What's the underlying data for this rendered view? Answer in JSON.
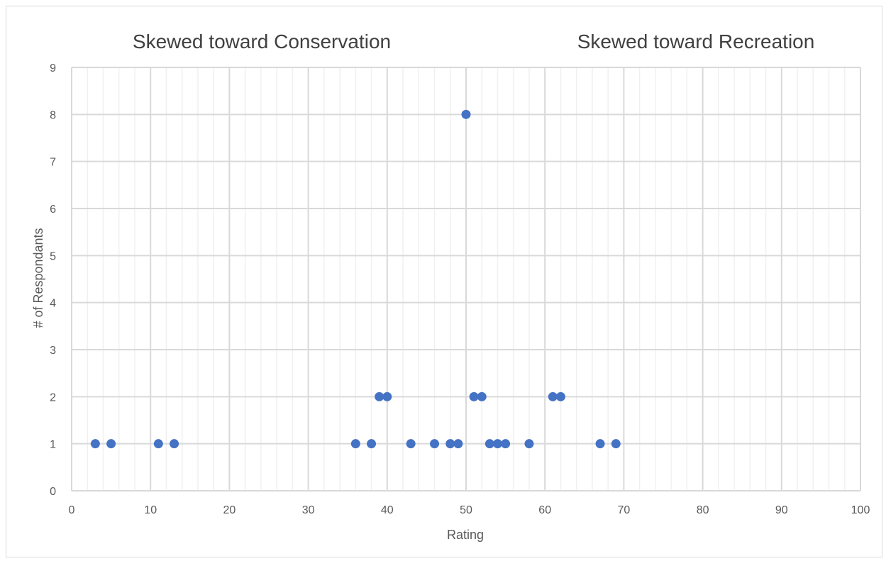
{
  "chart_data": {
    "type": "scatter",
    "title": "",
    "xlabel": "Rating",
    "ylabel": "# of Respondants",
    "xlim": [
      0,
      100
    ],
    "ylim": [
      0,
      9
    ],
    "x_ticks": [
      0,
      10,
      20,
      30,
      40,
      50,
      60,
      70,
      80,
      90,
      100
    ],
    "y_ticks": [
      0,
      1,
      2,
      3,
      4,
      5,
      6,
      7,
      8,
      9
    ],
    "grid": true,
    "legend": "none",
    "annotations": [
      {
        "text": "Skewed toward Conservation"
      },
      {
        "text": "Skewed toward Recreation"
      }
    ],
    "series": [
      {
        "color": "#4472c4",
        "points": [
          {
            "x": 3,
            "y": 1
          },
          {
            "x": 5,
            "y": 1
          },
          {
            "x": 11,
            "y": 1
          },
          {
            "x": 13,
            "y": 1
          },
          {
            "x": 36,
            "y": 1
          },
          {
            "x": 38,
            "y": 1
          },
          {
            "x": 39,
            "y": 2
          },
          {
            "x": 40,
            "y": 2
          },
          {
            "x": 43,
            "y": 1
          },
          {
            "x": 46,
            "y": 1
          },
          {
            "x": 48,
            "y": 1
          },
          {
            "x": 49,
            "y": 1
          },
          {
            "x": 50,
            "y": 8
          },
          {
            "x": 51,
            "y": 2
          },
          {
            "x": 52,
            "y": 2
          },
          {
            "x": 53,
            "y": 1
          },
          {
            "x": 54,
            "y": 1
          },
          {
            "x": 55,
            "y": 1
          },
          {
            "x": 58,
            "y": 1
          },
          {
            "x": 61,
            "y": 2
          },
          {
            "x": 62,
            "y": 2
          },
          {
            "x": 67,
            "y": 1
          },
          {
            "x": 69,
            "y": 1
          }
        ]
      }
    ]
  },
  "colors": {
    "marker": "#4472c4",
    "major_grid": "#d9d9d9",
    "minor_grid": "#f0f0f0",
    "text": "#595959"
  }
}
